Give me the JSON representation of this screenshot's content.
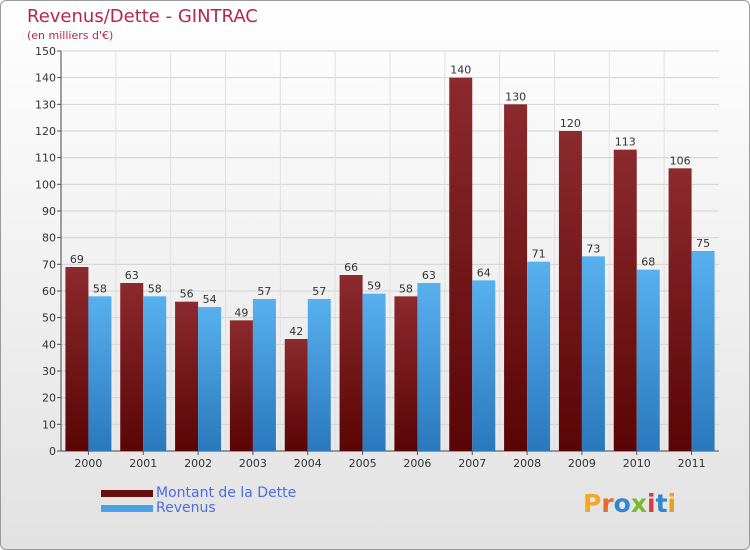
{
  "header": {
    "title": "Revenus/Dette - GINTRAC",
    "subtitle": "(en milliers d'€)"
  },
  "logo": {
    "letters": [
      "P",
      "r",
      "o",
      "x",
      "i",
      "t",
      "i"
    ],
    "colors": [
      "#f5a623",
      "#e8692c",
      "#2f87d2",
      "#7aba2f",
      "#d63c3c",
      "#2f87d2",
      "#e8a020"
    ]
  },
  "chart_data": {
    "type": "bar",
    "title": "Revenus/Dette - GINTRAC",
    "subtitle": "(en milliers d'€)",
    "xlabel": "",
    "ylabel": "",
    "categories": [
      "2000",
      "2001",
      "2002",
      "2003",
      "2004",
      "2005",
      "2006",
      "2007",
      "2008",
      "2009",
      "2010",
      "2011"
    ],
    "series": [
      {
        "name": "Montant de la Dette",
        "color": "#7a1a1a",
        "values": [
          69,
          63,
          56,
          49,
          42,
          66,
          58,
          140,
          130,
          120,
          113,
          106
        ]
      },
      {
        "name": "Revenus",
        "color": "#4aa2e4",
        "values": [
          58,
          58,
          54,
          57,
          57,
          59,
          63,
          64,
          71,
          73,
          68,
          75
        ]
      }
    ],
    "ylim": [
      0,
      150
    ],
    "yticks": [
      0,
      10,
      20,
      30,
      40,
      50,
      60,
      70,
      80,
      90,
      100,
      110,
      120,
      130,
      140,
      150
    ],
    "grid": true,
    "legend_position": "bottom-left"
  }
}
